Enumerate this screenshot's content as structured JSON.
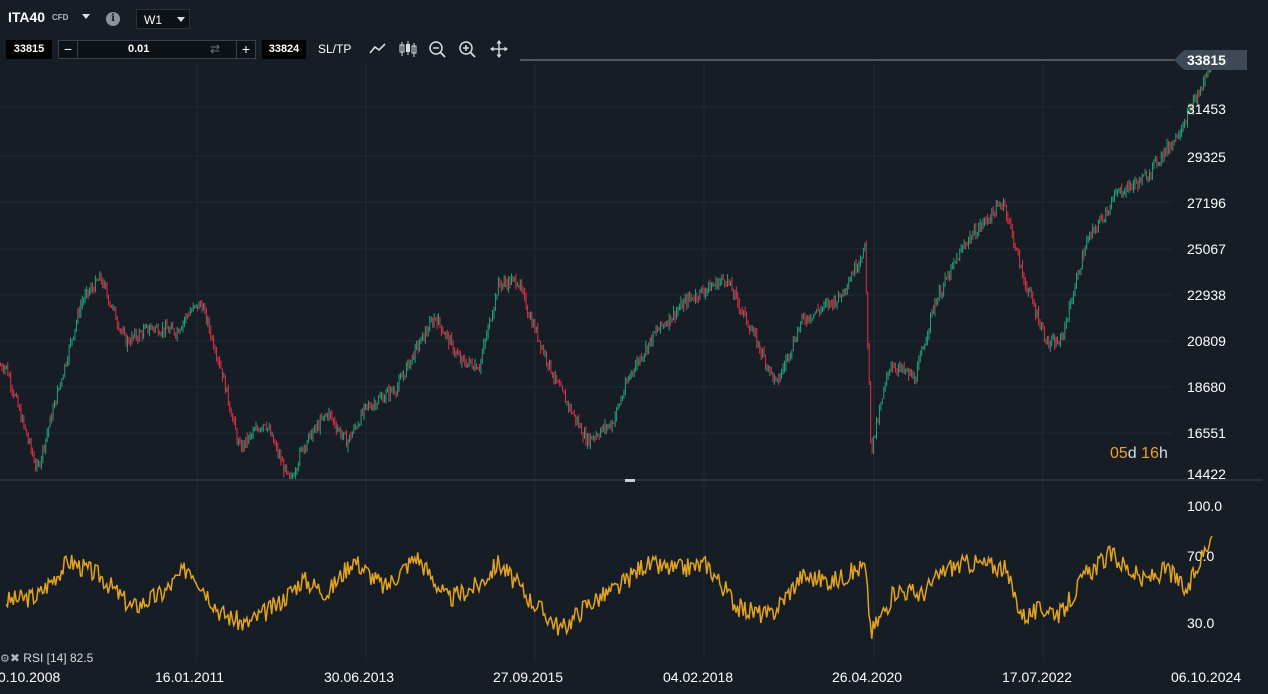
{
  "toolbar": {
    "symbol": "ITA40",
    "symbol_type": "CFD",
    "timeframe": "W1",
    "bid": "33815",
    "ask": "33824",
    "minus": "−",
    "plus": "+",
    "volume": "0.01",
    "swap_icon": "⇄",
    "sltp": "SL/TP",
    "info_icon": "i",
    "tools": [
      "line-chart-icon",
      "candlestick-icon",
      "zoom-out-icon",
      "zoom-in-icon",
      "move-icon"
    ]
  },
  "price_axis": {
    "current": "33815",
    "labels": [
      "31453",
      "29325",
      "27196",
      "25067",
      "22938",
      "20809",
      "18680",
      "16551",
      "14422"
    ]
  },
  "timer": {
    "days": "05",
    "days_unit": "d",
    "hours": "16",
    "hours_unit": "h"
  },
  "rsi": {
    "settings_icon": "⚙",
    "close_icon": "✖",
    "label": "RSI [14] 82.5",
    "axis_labels": [
      "100.0",
      "70.0",
      "30.0"
    ]
  },
  "time_axis": [
    "0.10.2008",
    "16.01.2011",
    "30.06.2013",
    "27.09.2015",
    "04.02.2018",
    "26.04.2020",
    "17.07.2022",
    "06.10.2024"
  ],
  "colors": {
    "up": "#26a17b",
    "down": "#e0304a",
    "rsi": "#e2a320",
    "background": "#161d24",
    "grid": "#202a33"
  },
  "chart_data": {
    "type": "candlestick",
    "timeframe": "W1",
    "y_range": [
      14422,
      33815
    ],
    "x": [
      "0.10.2008",
      "16.01.2011",
      "30.06.2013",
      "27.09.2015",
      "04.02.2018",
      "26.04.2020",
      "17.07.2022",
      "06.10.2024"
    ],
    "close_path": [
      [
        "2008-10",
        19500
      ],
      [
        "2008-12",
        17500
      ],
      [
        "2009-03",
        14600
      ],
      [
        "2009-06",
        18000
      ],
      [
        "2009-10",
        22500
      ],
      [
        "2010-01",
        23600
      ],
      [
        "2010-05",
        20600
      ],
      [
        "2010-09",
        21300
      ],
      [
        "2011-01",
        21100
      ],
      [
        "2011-03",
        22000
      ],
      [
        "2011-05",
        22400
      ],
      [
        "2011-08",
        19500
      ],
      [
        "2011-11",
        15600
      ],
      [
        "2012-03",
        16900
      ],
      [
        "2012-07",
        14000
      ],
      [
        "2012-09",
        15700
      ],
      [
        "2013-01",
        17300
      ],
      [
        "2013-04",
        15900
      ],
      [
        "2013-07",
        17500
      ],
      [
        "2013-12",
        18500
      ],
      [
        "2014-03",
        20300
      ],
      [
        "2014-06",
        21800
      ],
      [
        "2014-10",
        19700
      ],
      [
        "2015-01",
        19500
      ],
      [
        "2015-04",
        23300
      ],
      [
        "2015-07",
        23500
      ],
      [
        "2015-09",
        21800
      ],
      [
        "2016-01",
        18800
      ],
      [
        "2016-06",
        16000
      ],
      [
        "2016-10",
        16800
      ],
      [
        "2017-01",
        19200
      ],
      [
        "2017-05",
        21100
      ],
      [
        "2017-10",
        22600
      ],
      [
        "2018-01",
        23100
      ],
      [
        "2018-04",
        23600
      ],
      [
        "2018-08",
        21200
      ],
      [
        "2018-12",
        18600
      ],
      [
        "2019-04",
        21600
      ],
      [
        "2019-10",
        22700
      ],
      [
        "2020-02",
        25000
      ],
      [
        "2020-03",
        15500
      ],
      [
        "2020-06",
        19600
      ],
      [
        "2020-10",
        18900
      ],
      [
        "2021-01",
        22400
      ],
      [
        "2021-06",
        25300
      ],
      [
        "2021-12",
        27200
      ],
      [
        "2022-03",
        23700
      ],
      [
        "2022-07",
        20500
      ],
      [
        "2022-09",
        20600
      ],
      [
        "2023-01",
        25200
      ],
      [
        "2023-06",
        27600
      ],
      [
        "2023-10",
        28200
      ],
      [
        "2024-03",
        30100
      ],
      [
        "2024-07",
        32300
      ],
      [
        "2024-09",
        33815
      ]
    ],
    "current_price": 33815,
    "rsi_period": 14,
    "rsi_last": 82.5,
    "rsi_range": [
      0,
      100
    ],
    "rsi_levels": [
      30,
      70
    ],
    "rsi_path": [
      [
        "2008-10",
        43
      ],
      [
        "2009-03",
        46
      ],
      [
        "2009-08",
        67
      ],
      [
        "2010-01",
        58
      ],
      [
        "2010-06",
        39
      ],
      [
        "2010-11",
        48
      ],
      [
        "2011-03",
        64
      ],
      [
        "2011-08",
        36
      ],
      [
        "2011-12",
        29
      ],
      [
        "2012-05",
        41
      ],
      [
        "2012-09",
        56
      ],
      [
        "2013-01",
        48
      ],
      [
        "2013-05",
        68
      ],
      [
        "2013-10",
        51
      ],
      [
        "2014-03",
        70
      ],
      [
        "2014-08",
        44
      ],
      [
        "2015-01",
        53
      ],
      [
        "2015-04",
        66
      ],
      [
        "2015-09",
        44
      ],
      [
        "2016-02",
        26
      ],
      [
        "2016-06",
        41
      ],
      [
        "2016-11",
        51
      ],
      [
        "2017-03",
        65
      ],
      [
        "2017-08",
        62
      ],
      [
        "2018-01",
        65
      ],
      [
        "2018-06",
        39
      ],
      [
        "2018-11",
        34
      ],
      [
        "2019-04",
        58
      ],
      [
        "2019-09",
        55
      ],
      [
        "2020-02",
        64
      ],
      [
        "2020-03",
        24
      ],
      [
        "2020-07",
        50
      ],
      [
        "2020-11",
        47
      ],
      [
        "2021-03",
        63
      ],
      [
        "2021-07",
        66
      ],
      [
        "2021-12",
        63
      ],
      [
        "2022-03",
        34
      ],
      [
        "2022-07",
        39
      ],
      [
        "2022-09",
        35
      ],
      [
        "2023-01",
        59
      ],
      [
        "2023-05",
        71
      ],
      [
        "2023-10",
        55
      ],
      [
        "2024-02",
        62
      ],
      [
        "2024-05",
        48
      ],
      [
        "2024-07",
        67
      ],
      [
        "2024-09",
        82.5
      ]
    ]
  }
}
